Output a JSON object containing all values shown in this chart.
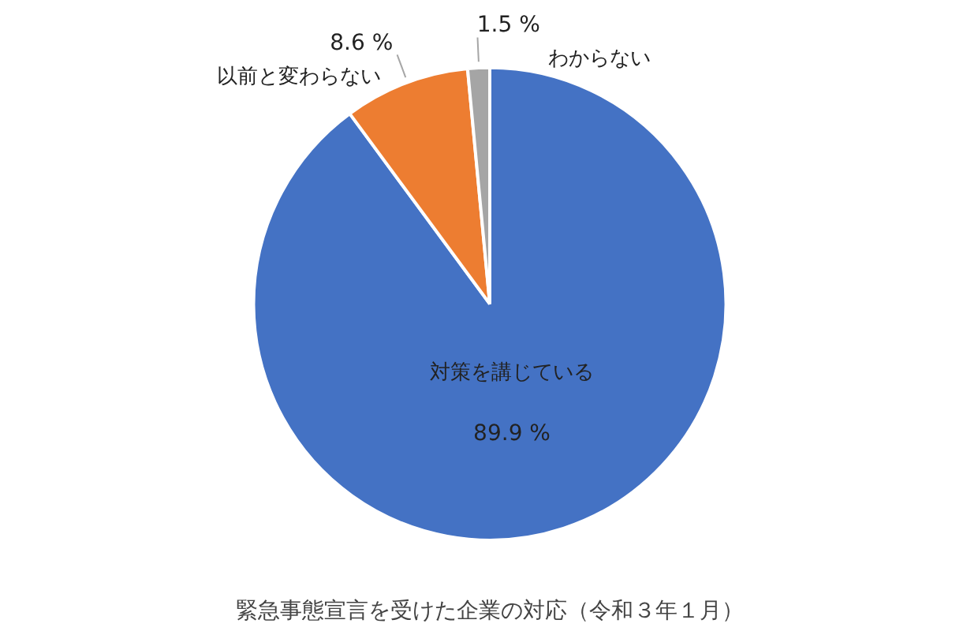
{
  "chart_data": {
    "type": "pie",
    "title": "緊急事態宣言を受けた企業の対応（令和３年１月）",
    "categories": [
      "対策を講じている",
      "以前と変わらない",
      "わからない"
    ],
    "values": [
      89.9,
      8.6,
      1.5
    ],
    "colors": [
      "#4472c4",
      "#ed7d31",
      "#a5a5a5"
    ],
    "value_labels": [
      "89.9 %",
      "8.6 %",
      "1.5 %"
    ]
  }
}
